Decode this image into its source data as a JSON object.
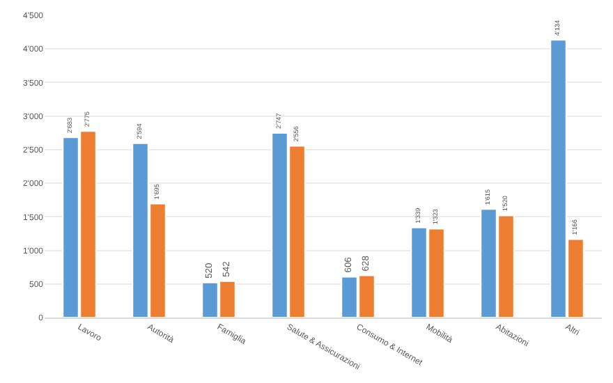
{
  "chart_data": {
    "type": "bar",
    "categories": [
      "Lavoro",
      "Autorità",
      "Famiglia",
      "Salute & Assicurazioni",
      "Consumo & Internet",
      "Mobilità",
      "Abitazioni",
      "Altri"
    ],
    "series": [
      {
        "color": "#5b9bd5",
        "values": [
          2683,
          2594,
          520,
          2747,
          606,
          1339,
          1615,
          4134
        ],
        "value_labels": [
          "2'683",
          "2'594",
          "520",
          "2'747",
          "606",
          "1'339",
          "1'615",
          "4'134"
        ]
      },
      {
        "color": "#ed7d31",
        "values": [
          2775,
          1695,
          542,
          2556,
          628,
          1323,
          1520,
          1166
        ],
        "value_labels": [
          "2'775",
          "1'695",
          "542",
          "2'556",
          "628",
          "1'323",
          "1'520",
          "1'166"
        ]
      }
    ],
    "ylim": [
      0,
      4500
    ],
    "yticks": [
      0,
      500,
      {
        "value": 1000,
        "label": "1'000"
      },
      {
        "value": 1500,
        "label": "1'500"
      },
      {
        "value": 2000,
        "label": "2'000"
      },
      {
        "value": 2500,
        "label": "2'500"
      },
      {
        "value": 3000,
        "label": "3'000"
      },
      {
        "value": 3500,
        "label": "3'500"
      },
      {
        "value": 4000,
        "label": "4'000"
      },
      {
        "value": 4500,
        "label": "4'500"
      }
    ],
    "grid": "y",
    "legend": false
  }
}
